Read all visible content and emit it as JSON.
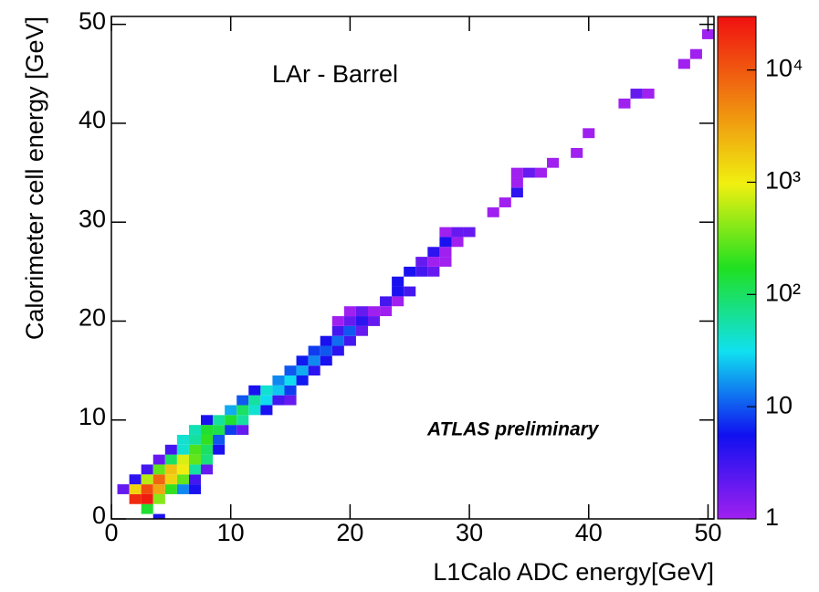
{
  "chart_data": {
    "type": "heatmap",
    "xlabel": "L1Calo ADC energy[GeV]",
    "ylabel": "Calorimeter cell energy [GeV]",
    "annotations": [
      "LAr - Barrel",
      "ATLAS preliminary"
    ],
    "xlim": [
      0,
      50.5
    ],
    "ylim": [
      0,
      50.8
    ],
    "xticks": [
      0,
      10,
      20,
      30,
      40,
      50
    ],
    "yticks": [
      0,
      10,
      20,
      30,
      40,
      50
    ],
    "zlim": [
      1,
      30000
    ],
    "log_z": true,
    "zticks": [
      1,
      10,
      {
        "value": 100,
        "label": "10²"
      },
      {
        "value": 1000,
        "label": "10³"
      },
      {
        "value": 10000,
        "label": "10⁴"
      }
    ],
    "colorscale": [
      "#a020f0",
      "#1010f0",
      "#10e0f0",
      "#20e020",
      "#f0f010",
      "#f08010",
      "#f01010"
    ],
    "x": [
      4,
      3,
      2,
      3,
      4,
      1,
      2,
      3,
      4,
      5,
      6,
      7,
      2,
      3,
      4,
      5,
      6,
      7,
      3,
      4,
      5,
      6,
      7,
      8,
      4,
      5,
      6,
      7,
      8,
      5,
      6,
      7,
      8,
      9,
      6,
      7,
      8,
      9,
      7,
      8,
      9,
      10,
      11,
      8,
      9,
      10,
      11,
      10,
      11,
      12,
      13,
      11,
      12,
      13,
      14,
      15,
      12,
      13,
      14,
      15,
      14,
      15,
      16,
      15,
      16,
      17,
      16,
      17,
      18,
      17,
      18,
      19,
      18,
      19,
      20,
      19,
      20,
      21,
      19,
      20,
      21,
      22,
      20,
      21,
      22,
      23,
      23,
      24,
      24,
      25,
      24,
      25,
      26,
      27,
      26,
      27,
      28,
      27,
      28,
      28,
      29,
      28,
      29,
      30,
      32,
      33,
      34,
      34,
      34,
      35,
      36,
      37,
      39,
      40,
      43,
      44,
      45,
      48,
      49,
      50
    ],
    "y": [
      0,
      1,
      2,
      2,
      2,
      3,
      3,
      3,
      3,
      3,
      3,
      3,
      4,
      4,
      4,
      4,
      4,
      4,
      5,
      5,
      5,
      5,
      5,
      5,
      6,
      6,
      6,
      6,
      6,
      7,
      7,
      7,
      7,
      7,
      8,
      8,
      8,
      8,
      9,
      9,
      9,
      9,
      9,
      10,
      10,
      10,
      10,
      11,
      11,
      11,
      11,
      12,
      12,
      12,
      12,
      12,
      13,
      13,
      13,
      13,
      14,
      14,
      14,
      15,
      15,
      15,
      16,
      16,
      16,
      17,
      17,
      17,
      18,
      18,
      18,
      19,
      19,
      19,
      20,
      20,
      20,
      20,
      21,
      21,
      21,
      21,
      22,
      22,
      23,
      23,
      24,
      25,
      25,
      25,
      26,
      26,
      26,
      27,
      27,
      28,
      28,
      29,
      29,
      29,
      31,
      32,
      33,
      34,
      35,
      35,
      35,
      36,
      37,
      39,
      42,
      43,
      43,
      46,
      47,
      49
    ],
    "values": [
      5,
      150,
      20000,
      25000,
      400,
      2,
      1500,
      12000,
      3000,
      200,
      15,
      5,
      4,
      600,
      8000,
      1500,
      300,
      3,
      3,
      300,
      2000,
      1000,
      60,
      2,
      2,
      100,
      800,
      300,
      80,
      3,
      40,
      250,
      100,
      5,
      40,
      60,
      200,
      10,
      50,
      150,
      120,
      8,
      2,
      5,
      60,
      150,
      60,
      20,
      100,
      40,
      5,
      10,
      60,
      30,
      3,
      2,
      5,
      40,
      25,
      8,
      15,
      30,
      6,
      10,
      20,
      4,
      6,
      15,
      5,
      8,
      10,
      4,
      5,
      12,
      3,
      3,
      10,
      2,
      1,
      2,
      4,
      2,
      1,
      2,
      1,
      1,
      3,
      1,
      5,
      3,
      5,
      5,
      3,
      2,
      2,
      1,
      1,
      4,
      1,
      5,
      1,
      1,
      2,
      2,
      1,
      1,
      4,
      1,
      1,
      2,
      1,
      1,
      1,
      1,
      1,
      2,
      1,
      1,
      1,
      1
    ]
  }
}
